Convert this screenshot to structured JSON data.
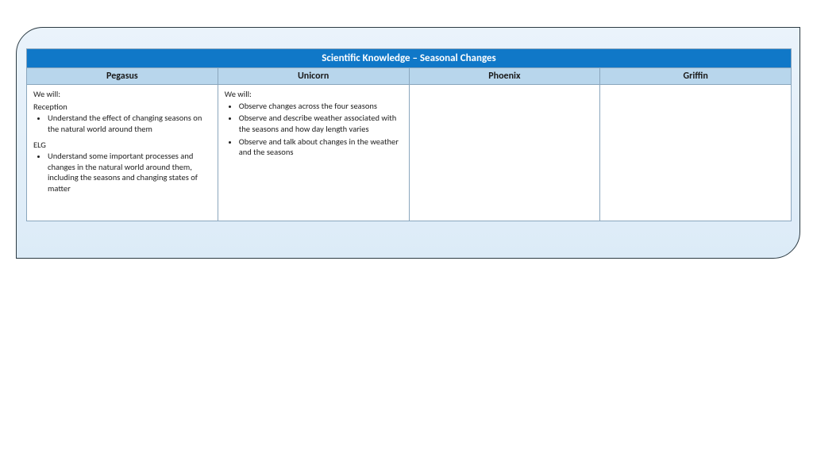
{
  "panel": {
    "background_gradient_top": "#eaf3fb",
    "background_gradient_bottom": "#dcebf7",
    "border_color": "#2b3a42"
  },
  "table": {
    "title": "Scientific Knowledge – Seasonal Changes",
    "title_bg": "#1078c8",
    "title_fg": "#ffffff",
    "header_bg": "#b8d6ec",
    "cell_border": "#8aa6bd",
    "columns": [
      "Pegasus",
      "Unicorn",
      "Phoenix",
      "Griffin"
    ],
    "cells": {
      "pegasus": {
        "intro": "We will:",
        "sections": [
          {
            "heading": "Reception",
            "bullets": [
              "Understand the effect of changing seasons on the natural world around them"
            ]
          },
          {
            "heading": "ELG",
            "bullets": [
              "Understand some important processes and changes in the natural world around them, including the seasons and changing states of matter"
            ]
          }
        ]
      },
      "unicorn": {
        "intro": "We will:",
        "bullets": [
          "Observe changes across the four seasons",
          "Observe and describe weather associated with the seasons and how day length varies",
          "Observe and talk about changes in the weather and the seasons"
        ]
      },
      "phoenix": {
        "content": ""
      },
      "griffin": {
        "content": ""
      }
    }
  }
}
